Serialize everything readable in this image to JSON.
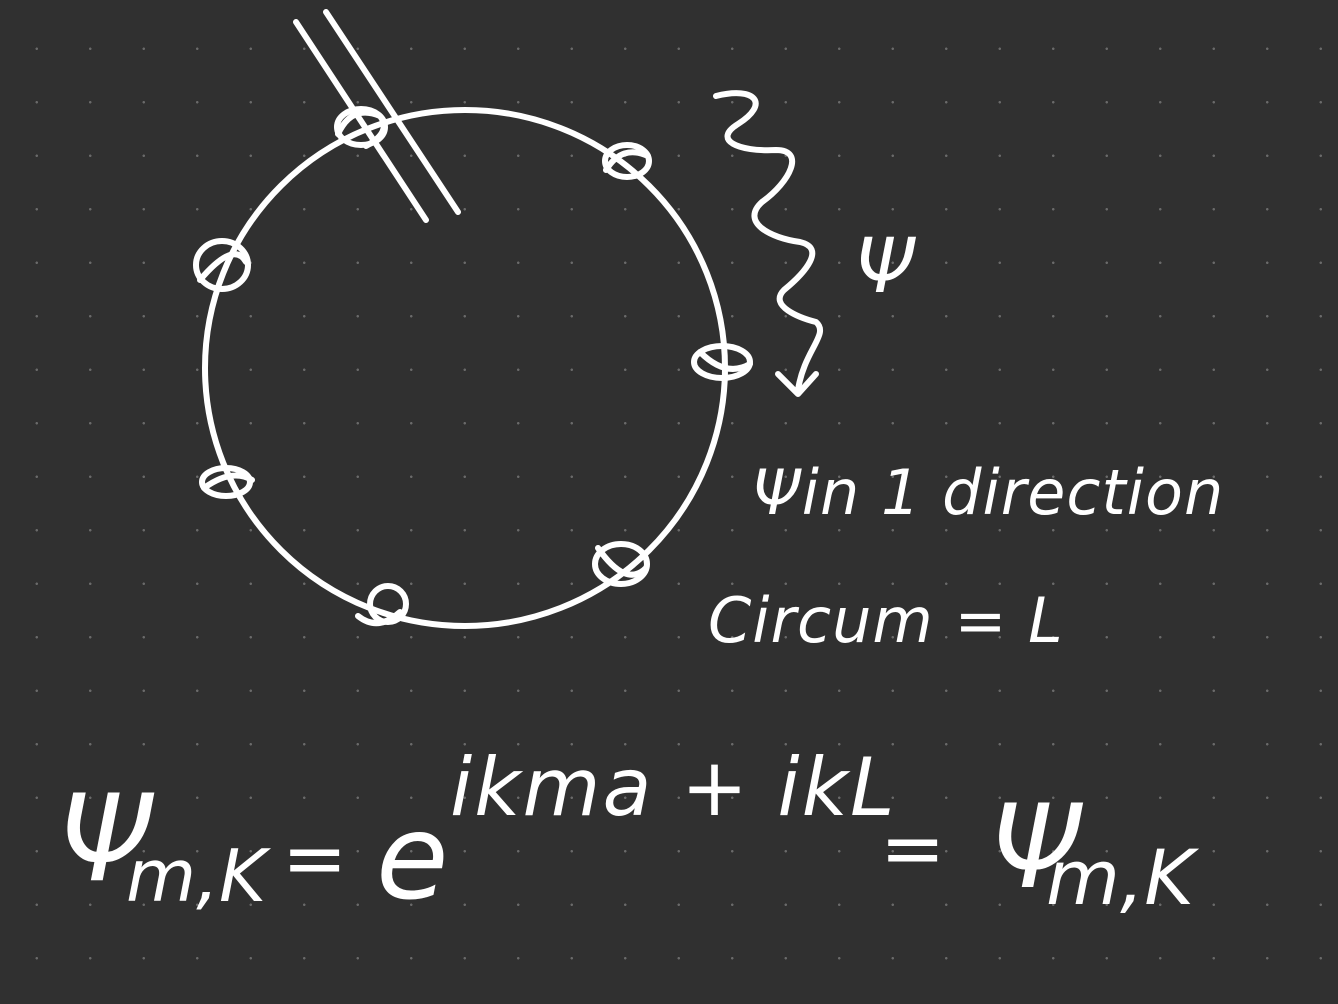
{
  "notes": {
    "psi_label": "Ψ",
    "direction": "Ψin 1 direction",
    "circumference": "Circum = L"
  },
  "equation": {
    "lhs_symbol": "Ψ",
    "lhs_subscript": "m,K",
    "equals_1": "=",
    "base": "e",
    "exponent": "ikma + ikL",
    "equals_2": "=",
    "rhs_symbol": "Ψ",
    "rhs_subscript": "m,K"
  }
}
